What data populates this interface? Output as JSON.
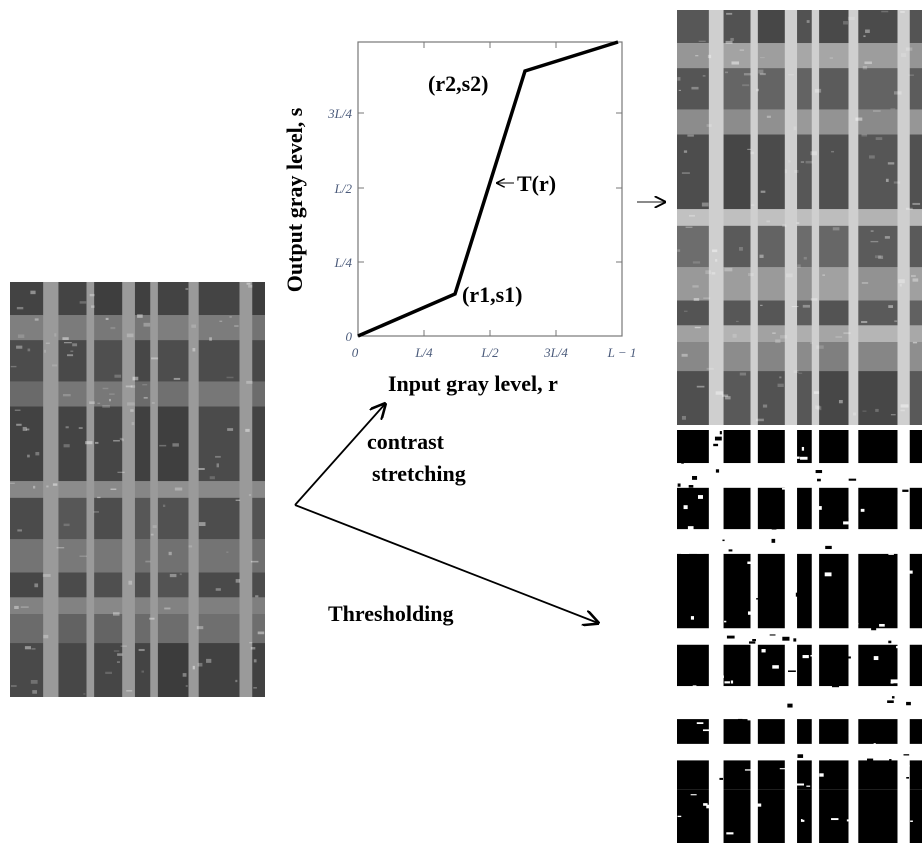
{
  "transfer_plot": {
    "x_label": "Input gray level, r",
    "y_label": "Output gray level, s",
    "x_ticks": [
      "0",
      "L/4",
      "L/2",
      "3L/4",
      "L − 1"
    ],
    "y_ticks": [
      "0",
      "L/4",
      "L/2",
      "3L/4"
    ],
    "curve_label": "T(r)",
    "points": [
      {
        "label": "(r1,s1)"
      },
      {
        "label": "(r2,s2)"
      }
    ]
  },
  "arrows": {
    "contrast_line1": "contrast",
    "contrast_line2": "stretching",
    "threshold": "Thresholding"
  }
}
